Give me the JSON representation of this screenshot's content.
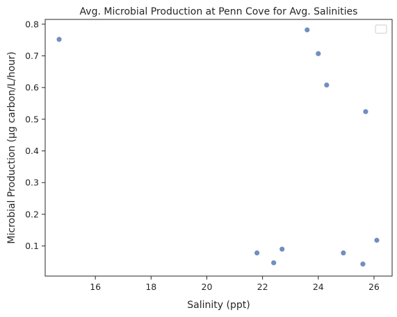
{
  "chart_data": {
    "type": "scatter",
    "title": "Avg. Microbial Production at Penn Cove for Avg. Salinities",
    "xlabel": "Salinity (ppt)",
    "ylabel": "Microbial Production (µg carbon/L/hour)",
    "xlim": [
      14.2,
      26.65
    ],
    "ylim": [
      0.005,
      0.815
    ],
    "xticks": [
      16,
      18,
      20,
      22,
      24,
      26
    ],
    "xtick_labels": [
      "16",
      "18",
      "20",
      "22",
      "24",
      "26"
    ],
    "yticks": [
      0.1,
      0.2,
      0.3,
      0.4,
      0.5,
      0.6,
      0.7,
      0.8
    ],
    "ytick_labels": [
      "0.1",
      "0.2",
      "0.3",
      "0.4",
      "0.5",
      "0.6",
      "0.7",
      "0.8"
    ],
    "grid": false,
    "legend": "top-right (empty)",
    "marker_color": "#6f8fc1",
    "points": [
      {
        "x": 14.7,
        "y": 0.752
      },
      {
        "x": 21.8,
        "y": 0.078
      },
      {
        "x": 22.4,
        "y": 0.047
      },
      {
        "x": 22.7,
        "y": 0.09
      },
      {
        "x": 23.6,
        "y": 0.782
      },
      {
        "x": 24.0,
        "y": 0.707
      },
      {
        "x": 24.3,
        "y": 0.608
      },
      {
        "x": 24.9,
        "y": 0.078
      },
      {
        "x": 25.6,
        "y": 0.043
      },
      {
        "x": 25.7,
        "y": 0.524
      },
      {
        "x": 26.1,
        "y": 0.118
      }
    ]
  }
}
